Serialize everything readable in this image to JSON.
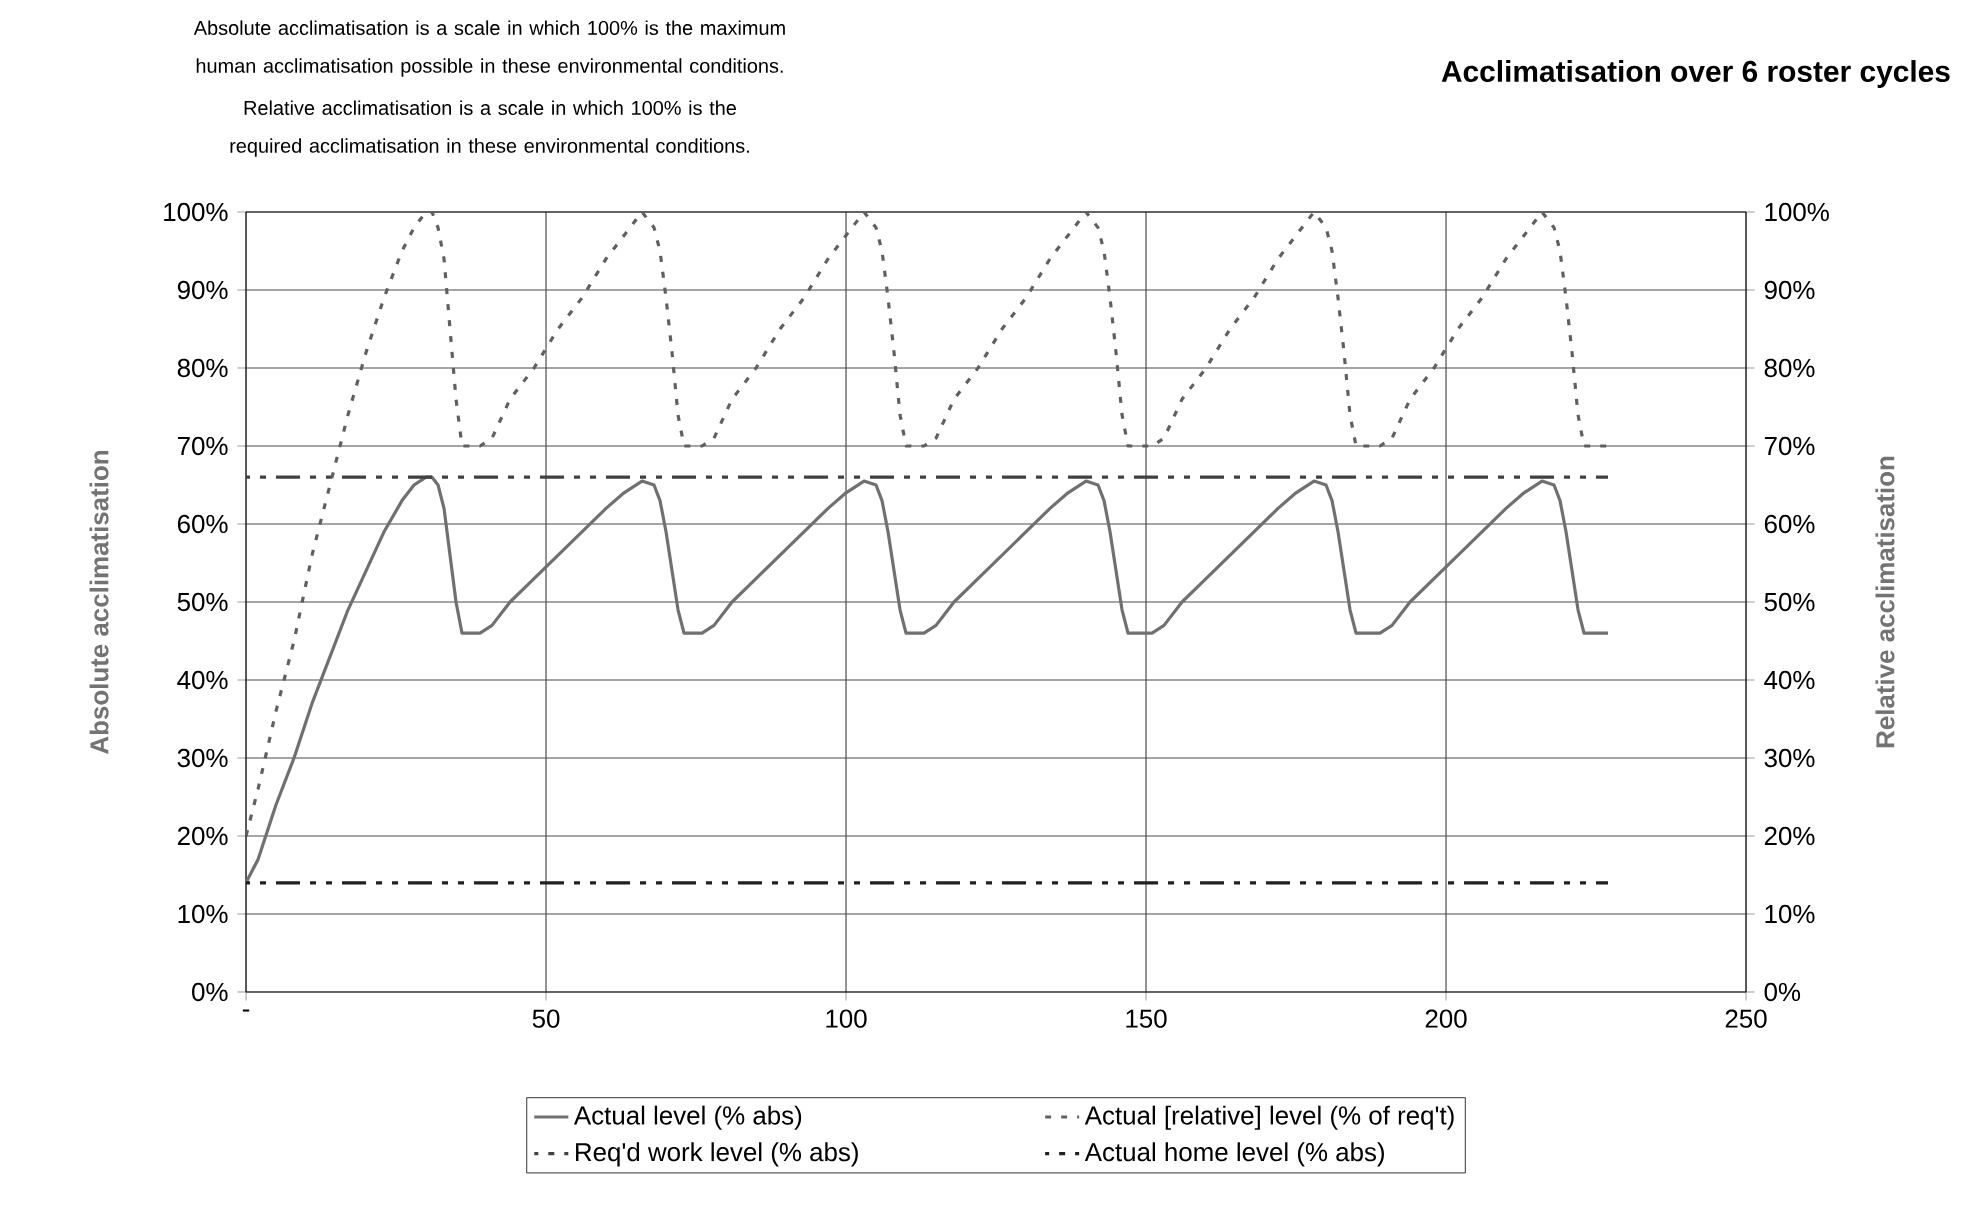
{
  "chart_data": {
    "type": "line",
    "title": "Acclimatisation over 6 roster cycles",
    "annotations": [
      "Absolute acclimatisation is a scale in which 100% is the maximum human acclimatisation possible in these environmental conditions.",
      "Relative acclimatisation is a scale in which 100% is the required acclimatisation in these environmental conditions."
    ],
    "ylabel": "Absolute acclimatisation",
    "y2label": "Relative acclimatisation",
    "xlim": [
      0,
      250
    ],
    "xticks": [
      {
        "value": 0,
        "label": "-"
      },
      50,
      100,
      150,
      200,
      250
    ],
    "ylim": [
      0,
      100
    ],
    "yticks": [
      {
        "value": 0,
        "label": "0%"
      },
      {
        "value": 10,
        "label": "10%"
      },
      {
        "value": 20,
        "label": "20%"
      },
      {
        "value": 30,
        "label": "30%"
      },
      {
        "value": 40,
        "label": "40%"
      },
      {
        "value": 50,
        "label": "50%"
      },
      {
        "value": 60,
        "label": "60%"
      },
      {
        "value": 70,
        "label": "70%"
      },
      {
        "value": 80,
        "label": "80%"
      },
      {
        "value": 90,
        "label": "90%"
      },
      {
        "value": 100,
        "label": "100%"
      }
    ],
    "y2lim": [
      0,
      100
    ],
    "y2ticks": [
      {
        "value": 0,
        "label": "0%"
      },
      {
        "value": 10,
        "label": "10%"
      },
      {
        "value": 20,
        "label": "20%"
      },
      {
        "value": 30,
        "label": "30%"
      },
      {
        "value": 40,
        "label": "40%"
      },
      {
        "value": 50,
        "label": "50%"
      },
      {
        "value": 60,
        "label": "60%"
      },
      {
        "value": 70,
        "label": "70%"
      },
      {
        "value": 80,
        "label": "80%"
      },
      {
        "value": 90,
        "label": "90%"
      },
      {
        "value": 100,
        "label": "100%"
      }
    ],
    "grid": true,
    "legend": "bottom",
    "marker": "none",
    "series": [
      {
        "name": "Actual level (% abs)",
        "color": "#707070",
        "line_style": "solid",
        "x": [
          0,
          2,
          5,
          8,
          11,
          14,
          17,
          20,
          23,
          26,
          28,
          30,
          31,
          32,
          33,
          34,
          35,
          36,
          37,
          39,
          41,
          44,
          48,
          52,
          56,
          60,
          63,
          66,
          68,
          69,
          70,
          71,
          72,
          73,
          74,
          76,
          78,
          81,
          85,
          89,
          93,
          97,
          100,
          103,
          105,
          106,
          107,
          108,
          109,
          110,
          112,
          113,
          115,
          118,
          122,
          126,
          130,
          134,
          137,
          140,
          142,
          143,
          144,
          145,
          146,
          147,
          149,
          151,
          153,
          156,
          160,
          164,
          168,
          172,
          175,
          178,
          180,
          181,
          182,
          183,
          184,
          185,
          187,
          189,
          191,
          194,
          198,
          202,
          206,
          210,
          213,
          216,
          218,
          219,
          220,
          221,
          222,
          223,
          225,
          227
        ],
        "values": [
          14,
          17,
          24,
          30,
          37,
          43,
          49,
          54,
          59,
          63,
          65,
          66,
          66,
          65,
          62,
          56,
          50,
          46,
          46,
          46,
          47,
          50,
          53,
          56,
          59,
          62,
          64,
          65.5,
          65,
          63,
          59,
          54,
          49,
          46,
          46,
          46,
          47,
          50,
          53,
          56,
          59,
          62,
          64,
          65.5,
          65,
          63,
          59,
          54,
          49,
          46,
          46,
          46,
          47,
          50,
          53,
          56,
          59,
          62,
          64,
          65.5,
          65,
          63,
          59,
          54,
          49,
          46,
          46,
          46,
          47,
          50,
          53,
          56,
          59,
          62,
          64,
          65.5,
          65,
          63,
          59,
          54,
          49,
          46,
          46,
          46,
          47,
          50,
          53,
          56,
          59,
          62,
          64,
          65.5,
          65,
          63,
          59,
          54,
          49,
          46,
          46,
          46
        ]
      },
      {
        "name": "Actual [relative] level (% of req't)",
        "color": "#606060",
        "line_style": "dotted",
        "axis": "y2",
        "x": [
          0,
          2,
          5,
          8,
          11,
          14,
          17,
          20,
          23,
          26,
          28,
          30,
          31,
          32,
          33,
          34,
          35,
          36,
          37,
          39,
          41,
          44,
          48,
          52,
          56,
          60,
          63,
          66,
          68,
          69,
          70,
          71,
          72,
          73,
          74,
          76,
          78,
          81,
          85,
          89,
          93,
          97,
          100,
          103,
          105,
          106,
          107,
          108,
          109,
          110,
          112,
          113,
          115,
          118,
          122,
          126,
          130,
          134,
          137,
          140,
          142,
          143,
          144,
          145,
          146,
          147,
          149,
          151,
          153,
          156,
          160,
          164,
          168,
          172,
          175,
          178,
          180,
          181,
          182,
          183,
          184,
          185,
          187,
          189,
          191,
          194,
          198,
          202,
          206,
          210,
          213,
          216,
          218,
          219,
          220,
          221,
          222,
          223,
          225,
          227
        ],
        "values": [
          20,
          26,
          36,
          45,
          56,
          65,
          74,
          82,
          89,
          95,
          98,
          100,
          100,
          98,
          94,
          85,
          76,
          70,
          70,
          70,
          71,
          76,
          80,
          85,
          89,
          94,
          97,
          100,
          98,
          95,
          89,
          82,
          74,
          70,
          70,
          70,
          71,
          76,
          80,
          85,
          89,
          94,
          97,
          100,
          98,
          95,
          89,
          82,
          74,
          70,
          70,
          70,
          71,
          76,
          80,
          85,
          89,
          94,
          97,
          100,
          98,
          95,
          89,
          82,
          74,
          70,
          70,
          70,
          71,
          76,
          80,
          85,
          89,
          94,
          97,
          100,
          98,
          95,
          89,
          82,
          74,
          70,
          70,
          70,
          71,
          76,
          80,
          85,
          89,
          94,
          97,
          100,
          98,
          95,
          89,
          82,
          74,
          70,
          70,
          70
        ]
      },
      {
        "name": "Req'd work level (% abs)",
        "color": "#404040",
        "line_style": "dashed",
        "x": [
          0,
          227
        ],
        "values": [
          66,
          66
        ]
      },
      {
        "name": "Actual home level (% abs)",
        "color": "#202020",
        "line_style": "dashed",
        "x": [
          0,
          227
        ],
        "values": [
          14,
          14
        ]
      }
    ]
  }
}
